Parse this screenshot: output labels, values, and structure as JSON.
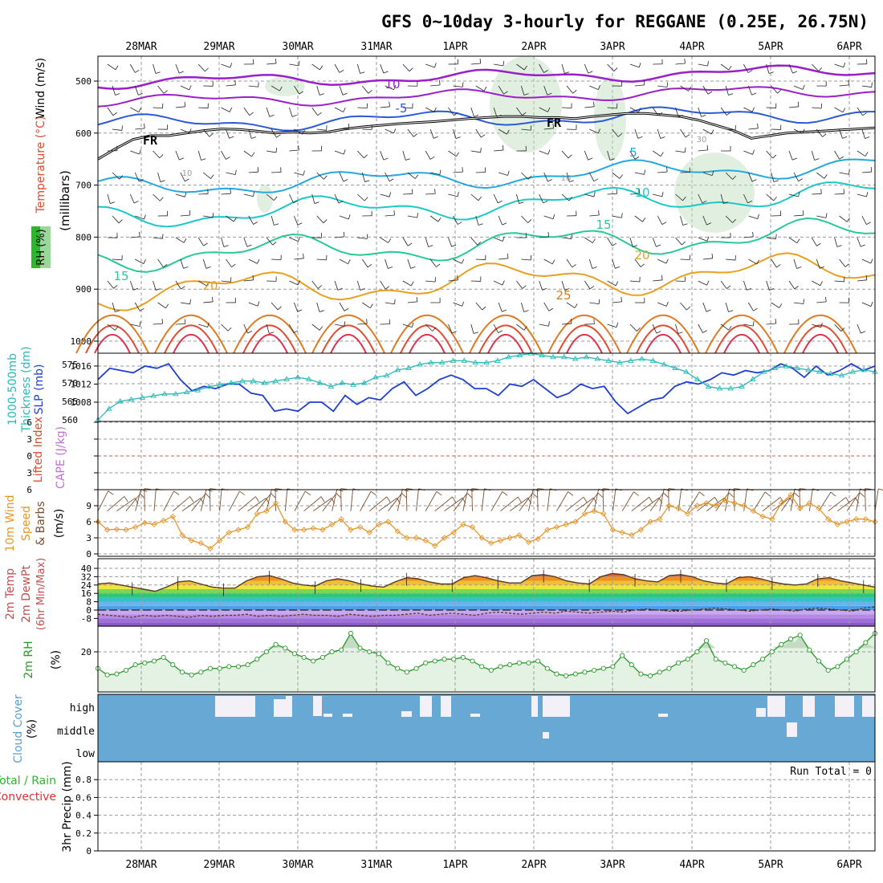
{
  "title": "GFS 0~10day 3-hourly for REGGANE (0.25E, 26.75N)",
  "dates": [
    "28MAR",
    "29MAR",
    "30MAR",
    "31MAR",
    "1APR",
    "2APR",
    "3APR",
    "4APR",
    "5APR",
    "6APR"
  ],
  "colors": {
    "grid": "#9a9a9a",
    "slp": "#1f3fd0",
    "thickness": "#2ab8b8",
    "wind": "#e8962a",
    "barb": "#7a5030",
    "rh": "#2a9a2a",
    "rh_fill": "#e4f2e4",
    "cloud": "#68a8d4",
    "cloud_gap": "#f4f0f8",
    "zero_line": "#e05050"
  },
  "chart_data": [
    {
      "type": "line",
      "panel": "upper-air",
      "ylabel": "(millibars)",
      "left_labels": [
        "Wind (m/s)",
        "Temperature (°C)",
        "RH (%)"
      ],
      "y_ticks": [
        500,
        600,
        700,
        800,
        900,
        1000
      ],
      "contour_labels": [
        "10",
        "-5",
        "FR",
        "FR",
        "5",
        "10",
        "15",
        "20",
        "25",
        "15",
        "20",
        "10",
        "10",
        "30"
      ],
      "freezing_level_mb": [
        650,
        630,
        612,
        605,
        605,
        600,
        595,
        592,
        593,
        596,
        600,
        598,
        600,
        598,
        592,
        588,
        585,
        582,
        580,
        578,
        575,
        572,
        570,
        568,
        568,
        570,
        570,
        572,
        568,
        565,
        562,
        562,
        565,
        568,
        575,
        585,
        595,
        610,
        605,
        600,
        598,
        596,
        594,
        592,
        590
      ]
    },
    {
      "type": "line",
      "panel": "slp-thickness",
      "left_labels": [
        "1000-500mb",
        "Thickness (dm)",
        "SLP (mb)"
      ],
      "y_ticks_thickness": [
        560,
        565,
        570,
        575
      ],
      "y_ticks_slp": [
        1008,
        1012,
        1016
      ],
      "series": [
        {
          "name": "SLP (mb)",
          "values": [
            1013,
            1015.5,
            1015,
            1014.5,
            1016,
            1015.5,
            1016.5,
            1013,
            1010.5,
            1011.5,
            1011,
            1012,
            1012,
            1010,
            1009.5,
            1006,
            1006.5,
            1006,
            1008,
            1008,
            1006,
            1009.5,
            1007.5,
            1009,
            1008.5,
            1011,
            1012.5,
            1009.5,
            1011,
            1013,
            1014,
            1013,
            1011,
            1011,
            1009.5,
            1012,
            1011.5,
            1013,
            1011,
            1009,
            1010,
            1012,
            1011,
            1011.5,
            1008,
            1005.5,
            1007,
            1008.5,
            1009,
            1011.5,
            1012.5,
            1012,
            1013,
            1014.5,
            1014,
            1015,
            1014.5,
            1015,
            1016.5,
            1015.5,
            1013.5,
            1016,
            1014,
            1015,
            1016.5,
            1015,
            1016
          ]
        },
        {
          "name": "1000-500mb Thickness (dm)",
          "values": [
            560,
            563,
            565,
            565.5,
            566,
            566.5,
            567,
            567,
            567.5,
            568,
            569,
            569.5,
            570,
            570.5,
            570.5,
            570,
            570.5,
            571,
            571.5,
            571,
            570,
            569,
            570,
            569.5,
            570,
            571.5,
            572,
            573.5,
            574,
            575,
            575.5,
            575.5,
            576,
            576,
            575.5,
            575.5,
            576,
            577,
            577.5,
            578,
            577.5,
            577,
            577,
            576.5,
            577,
            576.5,
            576,
            575.5,
            576,
            576.5,
            576,
            575,
            574,
            573,
            571,
            569,
            568.5,
            568.5,
            569,
            571,
            573,
            574,
            574.5,
            574,
            573.5,
            573,
            572.5,
            572,
            573,
            573.5,
            573
          ]
        }
      ]
    },
    {
      "type": "line",
      "panel": "cape-lifted-index",
      "left_labels": [
        "Lifted Index",
        "CAPE (J/kg)"
      ],
      "y_ticks": [
        -6,
        -3,
        0,
        3,
        6
      ],
      "series": [
        {
          "name": "Lifted Index",
          "values": []
        },
        {
          "name": "CAPE (J/kg)",
          "values": []
        }
      ]
    },
    {
      "type": "line",
      "panel": "10m-wind",
      "left_labels": [
        "10m Wind",
        "Speed",
        "& Barbs"
      ],
      "ylabel": "(m/s)",
      "y_ticks": [
        0,
        3,
        6,
        9
      ],
      "series": [
        {
          "name": "10m Wind Speed",
          "values": [
            6,
            4.5,
            4.6,
            4.5,
            5,
            5.8,
            5.5,
            6.2,
            7,
            3.5,
            2.5,
            2,
            1,
            2.5,
            4,
            4.5,
            5,
            7.5,
            8,
            9.5,
            6,
            4.5,
            4.5,
            4.8,
            4.5,
            5.5,
            6.5,
            4.5,
            5,
            4,
            5.5,
            6,
            4.2,
            3,
            3,
            2.5,
            1.5,
            3,
            4,
            5.5,
            5,
            3,
            2,
            2.5,
            3,
            3.5,
            2.2,
            2.8,
            4.5,
            5,
            5.5,
            6,
            7.5,
            8,
            7.5,
            4.5,
            4,
            3.5,
            4.5,
            6,
            6.5,
            9,
            8.5,
            7.5,
            9,
            9.5,
            9,
            10,
            9.5,
            9,
            8,
            7,
            6.5,
            9.5,
            11,
            8.5,
            9.5,
            8.5,
            6.5,
            5.5,
            6,
            6.5,
            6.5,
            6
          ]
        }
      ]
    },
    {
      "type": "area",
      "panel": "2m-temperature",
      "left_labels": [
        "2m Temp",
        "2m DewPt",
        "(6hr Min/Max)"
      ],
      "y_ticks": [
        -8,
        0,
        8,
        16,
        24,
        32,
        40
      ],
      "series": [
        {
          "name": "2m Temp",
          "values": [
            25,
            26,
            24,
            22,
            20,
            18,
            22,
            27,
            28,
            25,
            22,
            21,
            21,
            28,
            32,
            33,
            30,
            26,
            24,
            23,
            28,
            30,
            28,
            25,
            23,
            22,
            27,
            31,
            30,
            27,
            25,
            25,
            31,
            33,
            31,
            28,
            26,
            26,
            33,
            34,
            32,
            28,
            26,
            25,
            32,
            35,
            34,
            30,
            28,
            27,
            33,
            34,
            32,
            28,
            26,
            25,
            31,
            32,
            30,
            27,
            25,
            24,
            25,
            30,
            31,
            28,
            26,
            24,
            22
          ]
        },
        {
          "name": "2m DewPt",
          "values": [
            -4,
            -5,
            -6,
            -7,
            -5,
            -6,
            -5,
            -6,
            -7,
            -5,
            -6,
            -5,
            -5,
            -4,
            -6,
            -5,
            -6,
            -5,
            -4,
            -5,
            -5,
            -6,
            -4,
            -5,
            -6,
            -5,
            -5,
            -4,
            -3,
            -5,
            -4,
            -3,
            -4,
            -5,
            -3,
            -2,
            -3,
            -4,
            -3,
            -2,
            -3,
            -1,
            -2,
            -3,
            -2,
            -1,
            -2,
            0,
            1,
            0,
            -1,
            -1,
            0,
            1,
            2,
            1,
            0,
            -1,
            0,
            1,
            0,
            -1,
            1,
            2,
            1,
            0,
            -1,
            2,
            3
          ]
        }
      ]
    },
    {
      "type": "area",
      "panel": "2m-rh",
      "left_labels": [
        "2m RH"
      ],
      "ylabel": "(%)",
      "y_ticks": [
        20
      ],
      "series": [
        {
          "name": "2m RH",
          "values": [
            11,
            7.5,
            8,
            10,
            13,
            14,
            15,
            17,
            13,
            9,
            7.5,
            9,
            11,
            11,
            12,
            12,
            13,
            16,
            20,
            24,
            22,
            19,
            17,
            15,
            17,
            20,
            21,
            30,
            22,
            20,
            19,
            14,
            11,
            9,
            11,
            14,
            15,
            16,
            16,
            17,
            15,
            12,
            10,
            12,
            13,
            14,
            14,
            15,
            11,
            8,
            7,
            8,
            9,
            10,
            11,
            12,
            18,
            13,
            8,
            7,
            9,
            11,
            14,
            16,
            20,
            26,
            16,
            14,
            12,
            10,
            13,
            16,
            20,
            24,
            27,
            29,
            21,
            15,
            10,
            12,
            16,
            20,
            25,
            30
          ]
        }
      ]
    },
    {
      "type": "heatmap",
      "panel": "cloud-cover",
      "left_labels": [
        "Cloud Cover",
        "(%)"
      ],
      "y_ticks": [
        "high",
        "middle",
        "low"
      ]
    },
    {
      "type": "bar",
      "panel": "3hr-precip",
      "left_labels": [
        "Total / Rain",
        "Convective",
        "3hr Precip (mm)"
      ],
      "y_ticks": [
        0,
        0.2,
        0.4,
        0.6,
        0.8
      ],
      "annotation": "Run Total = 0",
      "values": []
    }
  ]
}
